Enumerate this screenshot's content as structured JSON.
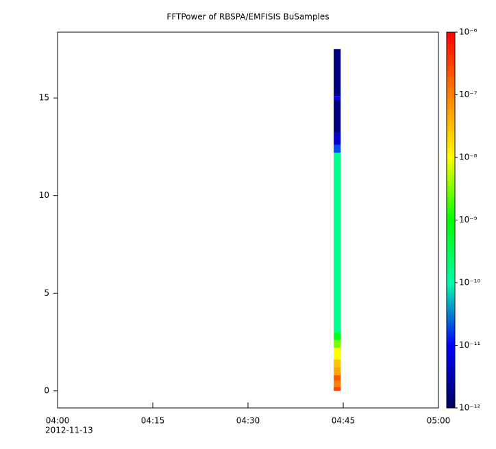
{
  "chart_data": {
    "type": "spectrogram",
    "title": "FFTPower of RBSPA/EMFISIS  BuSamples",
    "time_bins": [
      "2012-11-13T04:43:30",
      "2012-11-13T04:44:36"
    ],
    "bins": [
      0,
      0.2,
      0.5,
      0.8,
      1.2,
      1.6,
      2.2,
      2.6,
      3.0,
      12.2,
      12.6,
      13.2,
      14.9,
      15.1,
      17.5
    ],
    "values": [
      [
        3e-07,
        1e-07,
        2e-07,
        5e-08,
        3e-08,
        1e-08,
        3e-09,
        8e-10,
        1.5e-10,
        2e-11,
        5e-12,
        1.5e-12,
        1e-11,
        1.5e-12
      ]
    ],
    "xlim": [
      "2012-11-13T04:00",
      "2012-11-13T05:00"
    ],
    "xticks": [
      {
        "value": "2012-11-13T04:00",
        "label": "04:00"
      },
      {
        "value": "2012-11-13T04:15",
        "label": "04:15"
      },
      {
        "value": "2012-11-13T04:30",
        "label": "04:30"
      },
      {
        "value": "2012-11-13T04:45",
        "label": "04:45"
      },
      {
        "value": "2012-11-13T05:00",
        "label": "05:00"
      }
    ],
    "xlabel_date": "2012-11-13",
    "ylim": [
      -0.88,
      18.37
    ],
    "yticks": [
      0,
      5,
      10,
      15
    ],
    "zscale": "log",
    "zlim": [
      1e-12,
      1e-06
    ],
    "zticks": [
      {
        "value": 1e-06,
        "label": "10⁻⁶"
      },
      {
        "value": 1e-07,
        "label": "10⁻⁷"
      },
      {
        "value": 1e-08,
        "label": "10⁻⁸"
      },
      {
        "value": 1e-09,
        "label": "10⁻⁹"
      },
      {
        "value": 1e-10,
        "label": "10⁻¹⁰"
      },
      {
        "value": 1e-11,
        "label": "10⁻¹¹"
      },
      {
        "value": 1e-12,
        "label": "10⁻¹²"
      }
    ],
    "colormap": [
      "#000060",
      "#0000ff",
      "#00ffa8",
      "#00ff00",
      "#ffff00",
      "#ff8000",
      "#ff0000"
    ]
  }
}
